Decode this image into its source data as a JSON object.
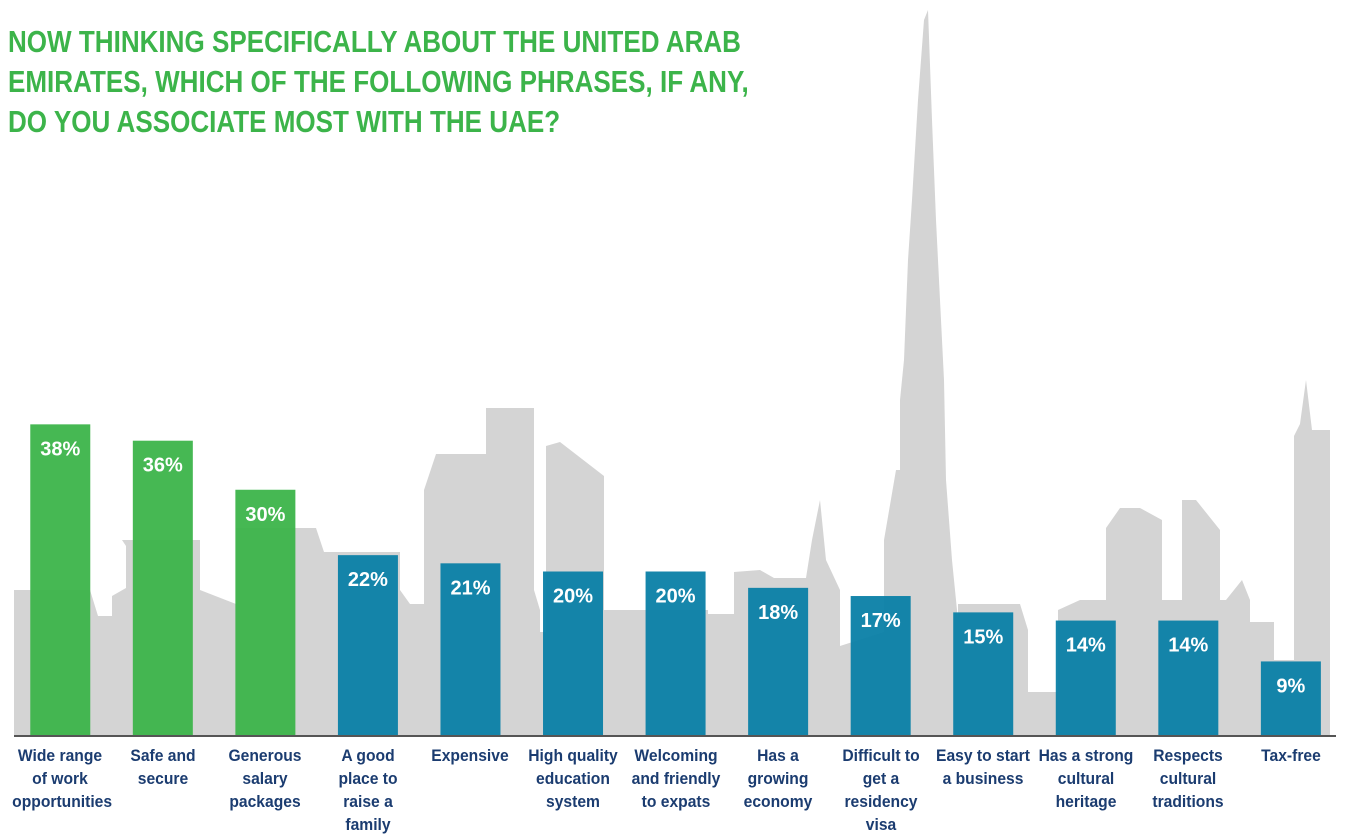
{
  "chart_data": {
    "type": "bar",
    "title": "NOW THINKING SPECIFICALLY ABOUT THE UNITED ARAB EMIRATES, WHICH OF THE FOLLOWING PHRASES, IF ANY, DO YOU ASSOCIATE MOST WITH THE UAE?",
    "categories": [
      "Wide range of work opportunities",
      "Safe and secure",
      "Generous salary packages",
      "A good place to raise a family",
      "Expensive",
      "High quality education system",
      "Welcoming and friendly to expats",
      "Has a growing economy",
      "Difficult to get a residency visa",
      "Easy to start a business",
      "Has a strong cultural heritage",
      "Respects cultural traditions",
      "Tax-free"
    ],
    "values": [
      38,
      36,
      30,
      22,
      21,
      20,
      20,
      18,
      17,
      15,
      14,
      14,
      9
    ],
    "value_labels": [
      "38%",
      "36%",
      "30%",
      "22%",
      "21%",
      "20%",
      "20%",
      "18%",
      "17%",
      "15%",
      "14%",
      "14%",
      "9%"
    ],
    "colors": [
      "#3cb44a",
      "#3cb44a",
      "#3cb44a",
      "#0a7fa6",
      "#0a7fa6",
      "#0a7fa6",
      "#0a7fa6",
      "#0a7fa6",
      "#0a7fa6",
      "#0a7fa6",
      "#0a7fa6",
      "#0a7fa6",
      "#0a7fa6"
    ],
    "ylim": [
      0,
      40
    ]
  }
}
